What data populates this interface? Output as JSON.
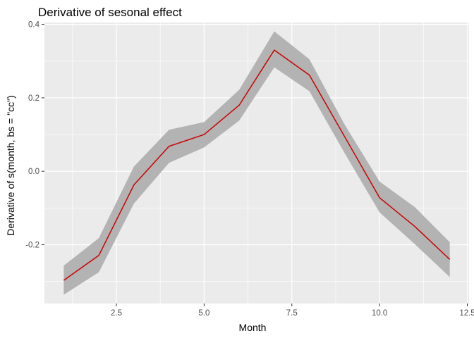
{
  "chart_data": {
    "type": "line",
    "title": "Derivative of sesonal effect",
    "xlabel": "Month",
    "ylabel": "Derivative of s(month, bs = \"cc\")",
    "xlim": [
      0.45,
      12.55
    ],
    "ylim": [
      -0.36,
      0.405
    ],
    "x_ticks": [
      2.5,
      5.0,
      7.5,
      10.0,
      12.5
    ],
    "x_tick_labels": [
      "2.5",
      "5.0",
      "7.5",
      "10.0",
      "12.5"
    ],
    "y_ticks": [
      -0.2,
      0.0,
      0.2,
      0.4
    ],
    "y_tick_labels": [
      "-0.2",
      "0.0",
      "0.2",
      "0.4"
    ],
    "grid": true,
    "series": [
      {
        "x": [
          1,
          2,
          3,
          4,
          5,
          6,
          7,
          8,
          9,
          10,
          11,
          12
        ],
        "values": [
          -0.297,
          -0.229,
          -0.037,
          0.068,
          0.1,
          0.18,
          0.33,
          0.262,
          0.095,
          -0.072,
          -0.15,
          -0.24
        ],
        "lower": [
          -0.336,
          -0.275,
          -0.088,
          0.023,
          0.065,
          0.138,
          0.283,
          0.218,
          0.05,
          -0.112,
          -0.198,
          -0.288
        ],
        "upper": [
          -0.257,
          -0.182,
          0.013,
          0.113,
          0.134,
          0.222,
          0.381,
          0.305,
          0.128,
          -0.028,
          -0.097,
          -0.193
        ]
      }
    ],
    "colors": {
      "line": "#cc0000",
      "band": "#b3b3b3",
      "panel": "#ebebeb",
      "grid": "#ffffff",
      "tick": "#333333"
    }
  }
}
